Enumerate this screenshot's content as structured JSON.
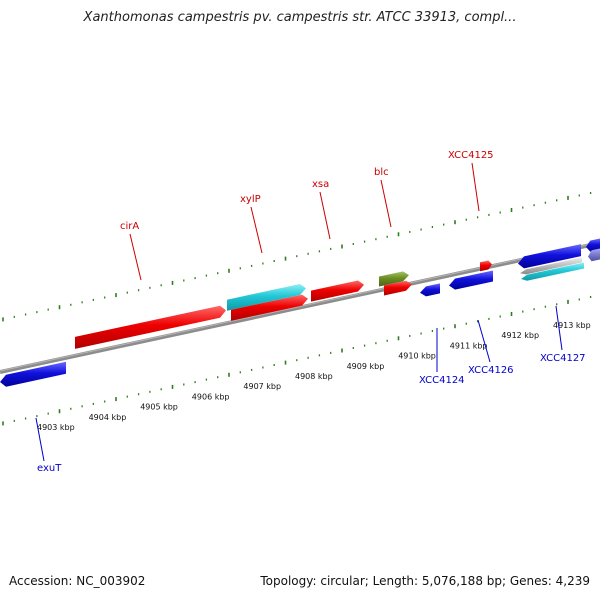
{
  "title": "Xanthomonas campestris pv. campestris str. ATCC 33913, compl...",
  "footer": {
    "accession": "Accession: NC_003902",
    "summary": "Topology: circular; Length: 5,076,188 bp; Genes: 4,239"
  },
  "colors": {
    "backbone": "#8c8c8c",
    "tick": "#2e7d1e",
    "forward_label": "#cc0000",
    "reverse_label": "#0000cc",
    "red": "#ee0000",
    "cyan": "#22c8d6",
    "olive": "#6b8e23",
    "blue": "#1111dd",
    "silver": "#bbbbbb",
    "purple": "#7777cc"
  },
  "scale_labels": [
    "4903 kbp",
    "4904 kbp",
    "4905 kbp",
    "4906 kbp",
    "4907 kbp",
    "4908 kbp",
    "4909 kbp",
    "4910 kbp",
    "4911 kbp",
    "4912 kbp",
    "4913 kbp"
  ],
  "forward_genes": [
    {
      "label": "cirA",
      "color": "red"
    },
    {
      "label": "xylP",
      "color": "cyan"
    },
    {
      "label": "",
      "color": "red"
    },
    {
      "label": "xsa",
      "color": "red"
    },
    {
      "label": "",
      "color": "olive"
    },
    {
      "label": "blc",
      "color": "red"
    },
    {
      "label": "XCC4125",
      "color": "red"
    }
  ],
  "reverse_genes": [
    {
      "label": "exuT",
      "color": "blue"
    },
    {
      "label": "XCC4124",
      "color": "blue"
    },
    {
      "label": "XCC4126",
      "color": "blue"
    },
    {
      "label": "",
      "color": "blue"
    },
    {
      "label": "",
      "color": "silver"
    },
    {
      "label": "XCC4127",
      "color": "cyan"
    },
    {
      "label": "",
      "color": "blue"
    },
    {
      "label": "",
      "color": "purple"
    }
  ]
}
